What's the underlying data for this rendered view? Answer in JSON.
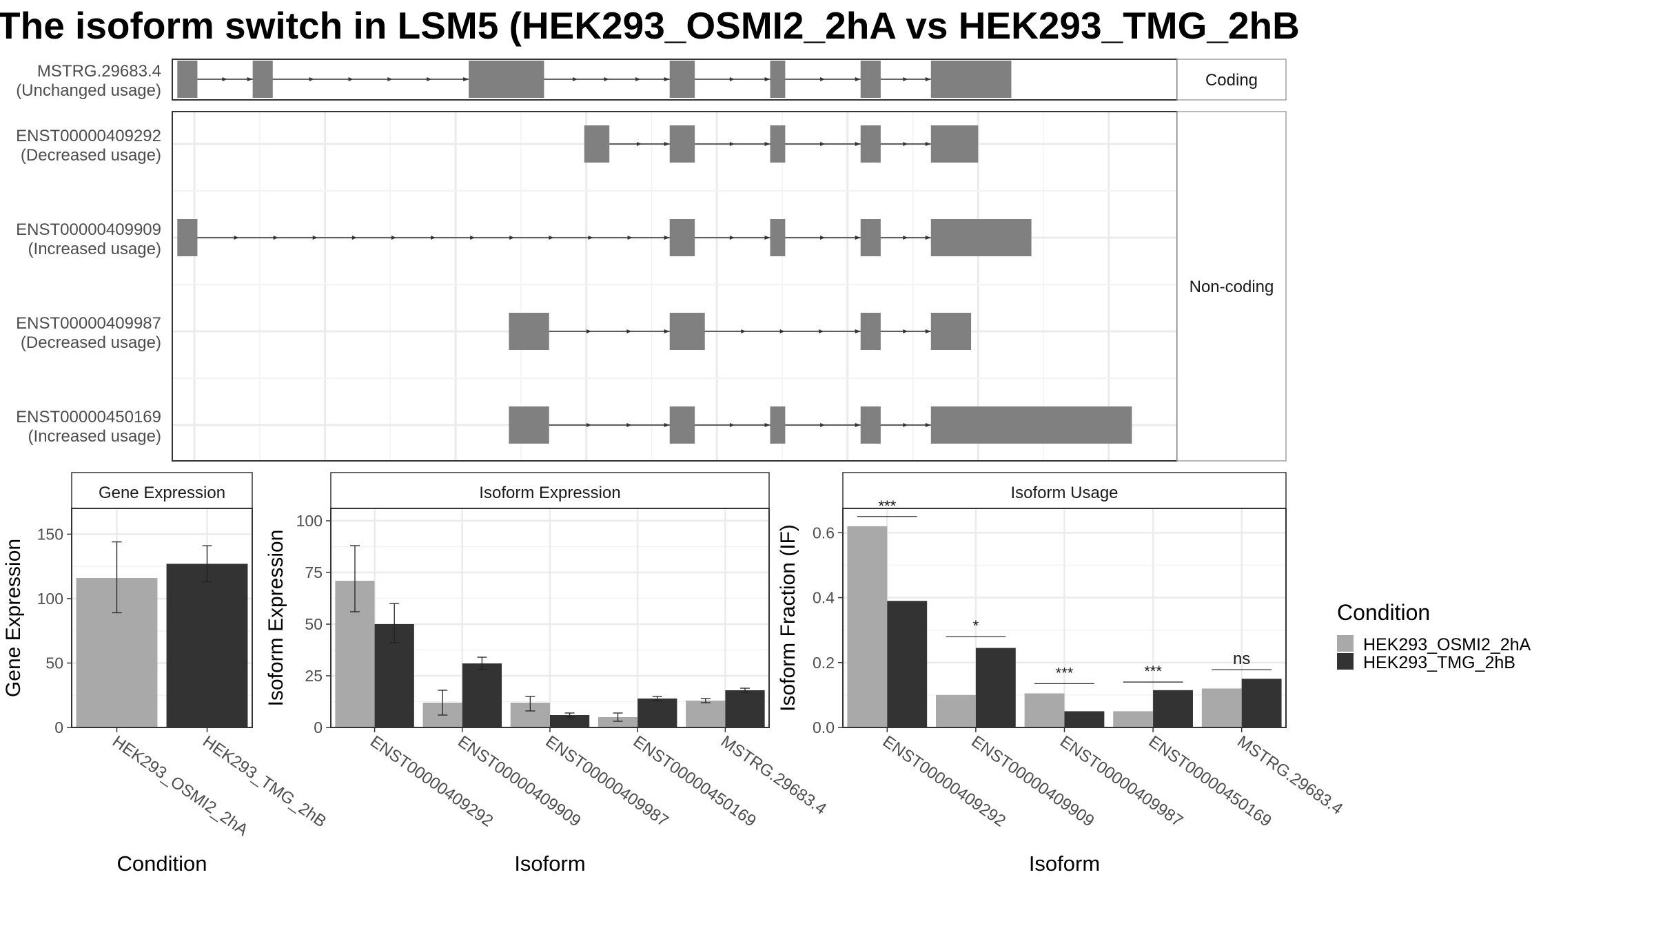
{
  "title": "The isoform switch in LSM5 (HEK293_OSMI2_2hA vs HEK293_TMG_2hB",
  "colors": {
    "exon": "#808080",
    "cond_a": "#a9a9a9",
    "cond_b": "#333333",
    "grid": "#ebebeb",
    "strip_bg": "#ffffff",
    "panel_border": "#333333",
    "text_dark": "#000000",
    "text_axis": "#4d4d4d"
  },
  "chart_data": [
    {
      "type": "gene-structure",
      "facets": [
        "Coding",
        "Non-coding"
      ],
      "transcripts": [
        {
          "id": "MSTRG.29683.4",
          "usage": "(Unchanged usage)",
          "facet": "Coding",
          "exons": [
            [
              0.5,
              2.5
            ],
            [
              8.0,
              10.0
            ],
            [
              29.5,
              37.0
            ],
            [
              49.5,
              52.0
            ],
            [
              59.5,
              61.0
            ],
            [
              68.5,
              70.5
            ],
            [
              75.5,
              83.5
            ]
          ]
        },
        {
          "id": "ENST00000409292",
          "usage": "(Decreased usage)",
          "facet": "Non-coding",
          "exons": [
            [
              41.0,
              43.5
            ],
            [
              49.5,
              52.0
            ],
            [
              59.5,
              61.0
            ],
            [
              68.5,
              70.5
            ],
            [
              75.5,
              80.2
            ]
          ]
        },
        {
          "id": "ENST00000409909",
          "usage": "(Increased usage)",
          "facet": "Non-coding",
          "exons": [
            [
              0.5,
              2.5
            ],
            [
              49.5,
              52.0
            ],
            [
              59.5,
              61.0
            ],
            [
              68.5,
              70.5
            ],
            [
              75.5,
              85.5
            ]
          ]
        },
        {
          "id": "ENST00000409987",
          "usage": "(Decreased usage)",
          "facet": "Non-coding",
          "exons": [
            [
              33.5,
              37.5
            ],
            [
              49.5,
              53.0
            ],
            [
              68.5,
              70.5
            ],
            [
              75.5,
              79.5
            ]
          ]
        },
        {
          "id": "ENST00000450169",
          "usage": "(Increased usage)",
          "facet": "Non-coding",
          "exons": [
            [
              33.5,
              37.5
            ],
            [
              49.5,
              52.0
            ],
            [
              59.5,
              61.0
            ],
            [
              68.5,
              70.5
            ],
            [
              75.5,
              95.5
            ]
          ]
        }
      ]
    },
    {
      "type": "bar",
      "strip": "Gene Expression",
      "xlabel": "Condition",
      "ylabel": "Gene Expression",
      "ylim": [
        0,
        170
      ],
      "yticks": [
        0,
        50,
        100,
        150
      ],
      "categories": [
        "HEK293_OSMI2_2hA",
        "HEK293_TMG_2hB"
      ],
      "series": [
        {
          "name": "HEK293_OSMI2_2hA",
          "values": [
            116,
            null
          ],
          "err": [
            [
              89,
              144
            ],
            null
          ]
        },
        {
          "name": "HEK293_TMG_2hB",
          "values": [
            null,
            127
          ],
          "err": [
            null,
            [
              113,
              141
            ]
          ]
        }
      ]
    },
    {
      "type": "bar",
      "strip": "Isoform Expression",
      "xlabel": "Isoform",
      "ylabel": "Isoform Expression",
      "ylim": [
        0,
        106
      ],
      "yticks": [
        0,
        25,
        50,
        75,
        100
      ],
      "categories": [
        "ENST00000409292",
        "ENST00000409909",
        "ENST00000409987",
        "ENST00000450169",
        "MSTRG.29683.4"
      ],
      "series": [
        {
          "name": "HEK293_OSMI2_2hA",
          "values": [
            71,
            12,
            12,
            5,
            13
          ],
          "err": [
            [
              56,
              88
            ],
            [
              6,
              18
            ],
            [
              8,
              15
            ],
            [
              3,
              7
            ],
            [
              12,
              14
            ]
          ]
        },
        {
          "name": "HEK293_TMG_2hB",
          "values": [
            50,
            31,
            6,
            14,
            18
          ],
          "err": [
            [
              41,
              60
            ],
            [
              28,
              34
            ],
            [
              5,
              7
            ],
            [
              13,
              15
            ],
            [
              17,
              19
            ]
          ]
        }
      ]
    },
    {
      "type": "bar",
      "strip": "Isoform Usage",
      "xlabel": "Isoform",
      "ylabel": "Isoform Fraction (IF)",
      "ylim": [
        0,
        0.675
      ],
      "yticks": [
        0.0,
        0.2,
        0.4,
        0.6
      ],
      "ytick_labels": [
        "0.0",
        "0.2",
        "0.4",
        "0.6"
      ],
      "categories": [
        "ENST00000409292",
        "ENST00000409909",
        "ENST00000409987",
        "ENST00000450169",
        "MSTRG.29683.4"
      ],
      "series": [
        {
          "name": "HEK293_OSMI2_2hA",
          "values": [
            0.62,
            0.1,
            0.105,
            0.05,
            0.12
          ]
        },
        {
          "name": "HEK293_TMG_2hB",
          "values": [
            0.39,
            0.245,
            0.05,
            0.115,
            0.15
          ]
        }
      ],
      "significance": [
        "***",
        "*",
        "***",
        "***",
        "ns"
      ],
      "significance_y": [
        0.65,
        0.28,
        0.135,
        0.14,
        0.178
      ]
    }
  ],
  "legend": {
    "title": "Condition",
    "entries": [
      "HEK293_OSMI2_2hA",
      "HEK293_TMG_2hB"
    ]
  }
}
